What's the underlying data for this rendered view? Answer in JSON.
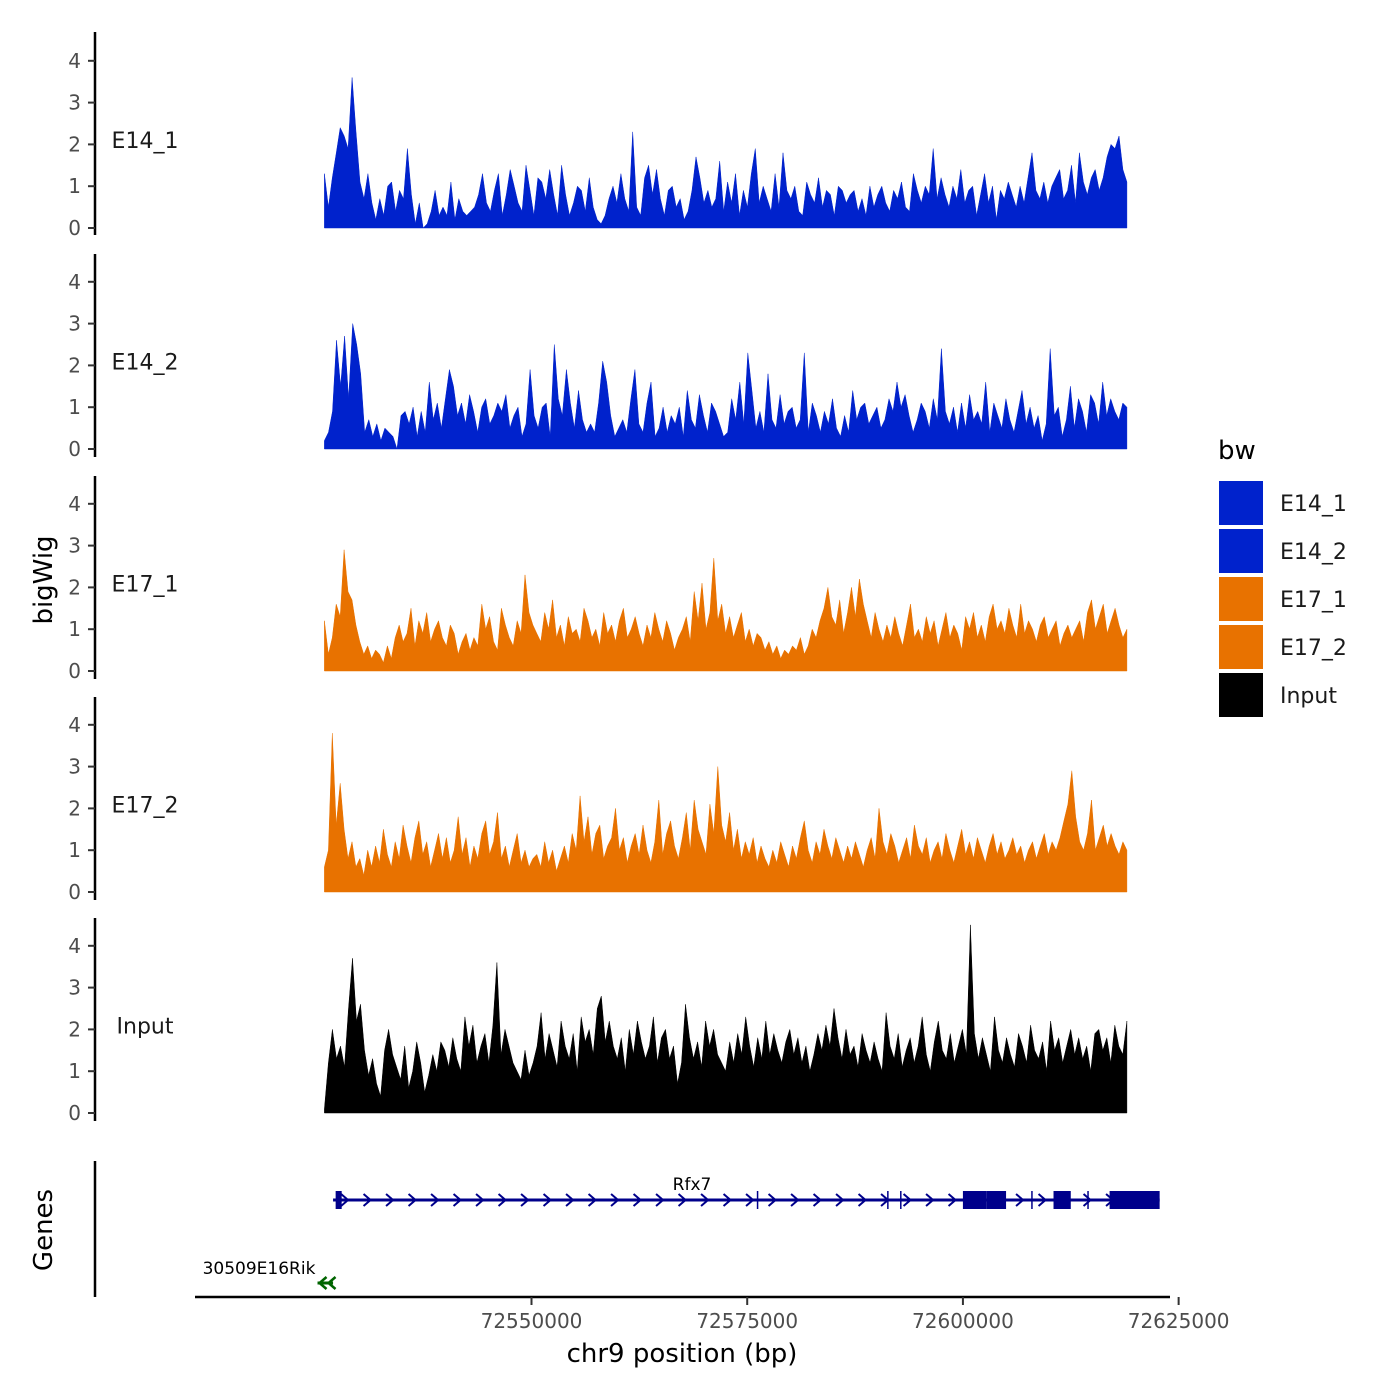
{
  "chart_data": {
    "type": "area",
    "xlabel": "chr9 position (bp)",
    "ylabel": "bigWig",
    "genes_label": "Genes",
    "xlim": [
      72511000,
      72624000
    ],
    "x_ticks": [
      72550000,
      72575000,
      72600000,
      72625000
    ],
    "x_tick_labels": [
      "72550000",
      "72575000",
      "72600000",
      "72625000"
    ],
    "ylim": [
      0,
      4.7
    ],
    "y_ticks": [
      0,
      1,
      2,
      3,
      4
    ],
    "y_tick_labels": [
      "0",
      "1",
      "2",
      "3",
      "4"
    ],
    "grid": false,
    "legend": {
      "title": "bw",
      "position": "right",
      "entries": [
        {
          "name": "E14_1",
          "color": "#0022CC"
        },
        {
          "name": "E14_2",
          "color": "#0022CC"
        },
        {
          "name": "E17_1",
          "color": "#E87200"
        },
        {
          "name": "E17_2",
          "color": "#E87200"
        },
        {
          "name": "Input",
          "color": "#000000"
        }
      ]
    },
    "x_range_data": [
      72526000,
      72619000
    ],
    "tracks": [
      {
        "name": "E14_1",
        "color": "#0022CC",
        "values": [
          1.3,
          0.5,
          1.2,
          1.8,
          2.4,
          2.2,
          1.9,
          3.6,
          2.3,
          1.1,
          0.7,
          1.3,
          0.6,
          0.2,
          0.7,
          0.3,
          1.0,
          1.1,
          0.4,
          0.9,
          0.7,
          1.9,
          0.8,
          0.1,
          0.6,
          0,
          0.1,
          0.4,
          0.9,
          0.3,
          0.5,
          0.3,
          1.1,
          0.2,
          0.7,
          0.4,
          0.3,
          0.4,
          0.5,
          0.8,
          1.3,
          0.6,
          0.4,
          0.9,
          1.3,
          0.3,
          0.8,
          1.4,
          1.0,
          0.6,
          0.4,
          1.5,
          0.9,
          0.3,
          1.2,
          1.1,
          0.7,
          1.4,
          0.8,
          0.3,
          1.5,
          0.8,
          0.3,
          0.6,
          1.0,
          0.9,
          0.4,
          1.2,
          0.5,
          0.2,
          0.1,
          0.3,
          0.7,
          1.0,
          0.6,
          1.3,
          0.7,
          0.4,
          2.3,
          0.5,
          0.3,
          1.2,
          1.5,
          0.8,
          1.4,
          0.7,
          0.3,
          0.9,
          1.0,
          0.5,
          0.7,
          0.2,
          0.4,
          0.9,
          1.7,
          1.2,
          0.6,
          0.9,
          0.5,
          0.7,
          1.6,
          0.4,
          1.1,
          0.6,
          1.3,
          0.3,
          0.9,
          0.5,
          1.3,
          1.9,
          0.6,
          1.0,
          0.7,
          0.4,
          1.3,
          0.5,
          1.8,
          0.9,
          0.7,
          1.0,
          0.4,
          0.3,
          1.1,
          0.8,
          0.6,
          1.2,
          0.5,
          0.9,
          0.8,
          0.3,
          1.0,
          0.9,
          0.6,
          0.8,
          0.9,
          0.4,
          0.7,
          0.3,
          1.0,
          0.5,
          0.8,
          1.0,
          0.6,
          0.4,
          0.9,
          0.7,
          1.1,
          0.5,
          0.4,
          1.3,
          0.9,
          0.6,
          1.0,
          0.8,
          1.9,
          0.7,
          1.2,
          0.8,
          0.5,
          1.0,
          0.7,
          1.4,
          0.6,
          0.9,
          1.0,
          0.3,
          0.8,
          1.3,
          0.6,
          1.0,
          0.2,
          0.9,
          0.7,
          1.1,
          0.8,
          0.5,
          1.0,
          0.6,
          1.2,
          1.8,
          0.9,
          0.7,
          1.1,
          0.6,
          1.0,
          1.2,
          1.4,
          0.7,
          0.9,
          1.5,
          0.6,
          1.8,
          1.1,
          0.8,
          1.2,
          1.4,
          0.9,
          1.2,
          1.7,
          2.0,
          1.9,
          2.2,
          1.4,
          1.1
        ]
      },
      {
        "name": "E14_2",
        "color": "#0022CC",
        "values": [
          0.2,
          0.4,
          0.9,
          2.6,
          1.5,
          2.7,
          1.2,
          3.0,
          2.5,
          1.8,
          0.4,
          0.7,
          0.3,
          0.6,
          0.2,
          0.5,
          0.4,
          0.3,
          0,
          0.8,
          0.9,
          0.6,
          1.0,
          0.3,
          0.9,
          0.4,
          1.6,
          0.7,
          1.1,
          0.5,
          1.2,
          1.9,
          1.5,
          0.8,
          1.1,
          0.6,
          1.3,
          0.9,
          0.4,
          1.0,
          1.2,
          0.6,
          0.8,
          1.1,
          0.9,
          1.3,
          0.5,
          0.8,
          1.0,
          0.3,
          0.6,
          1.9,
          0.8,
          0.5,
          1.0,
          1.1,
          0.3,
          2.5,
          1.2,
          0.8,
          1.9,
          1.1,
          0.5,
          1.4,
          0.7,
          0.4,
          0.6,
          0.4,
          1.1,
          2.1,
          1.6,
          0.8,
          0.3,
          0.5,
          0.7,
          0.4,
          1.2,
          1.9,
          0.6,
          0.4,
          1.1,
          1.6,
          0.3,
          0.5,
          1.0,
          0.4,
          0.8,
          0.6,
          1.0,
          0.3,
          1.4,
          0.7,
          0.5,
          1.3,
          0.8,
          0.4,
          1.1,
          0.9,
          0.6,
          0.3,
          0.4,
          1.2,
          0.7,
          1.6,
          0.6,
          2.3,
          1.4,
          0.5,
          0.9,
          0.4,
          1.8,
          0.7,
          0.5,
          1.3,
          0.6,
          0.9,
          1.0,
          0.5,
          0.7,
          2.3,
          0.4,
          1.1,
          0.8,
          0.4,
          0.9,
          0.6,
          1.2,
          0.5,
          0.3,
          0.8,
          0.4,
          1.4,
          0.7,
          1.0,
          1.1,
          0.6,
          0.8,
          1.0,
          0.5,
          0.7,
          1.2,
          0.9,
          1.6,
          1.0,
          1.3,
          0.8,
          0.4,
          0.7,
          1.1,
          0.9,
          0.5,
          1.2,
          0.7,
          2.4,
          0.9,
          0.6,
          1.0,
          0.4,
          1.1,
          0.5,
          1.3,
          0.7,
          0.9,
          0.6,
          1.6,
          0.4,
          1.1,
          0.8,
          0.5,
          1.2,
          0.7,
          0.4,
          0.9,
          1.4,
          0.6,
          1.0,
          0.5,
          0.8,
          0.2,
          0.6,
          2.4,
          0.8,
          1.0,
          0.3,
          0.7,
          1.5,
          0.5,
          1.2,
          0.9,
          0.4,
          1.3,
          1.1,
          0.6,
          1.6,
          0.8,
          1.2,
          0.9,
          0.7,
          1.1,
          1.0
        ]
      },
      {
        "name": "E17_1",
        "color": "#E87200",
        "values": [
          1.2,
          0.4,
          0.8,
          1.6,
          1.3,
          2.9,
          1.9,
          1.7,
          1.1,
          0.7,
          0.4,
          0.6,
          0.3,
          0.5,
          0.4,
          0.2,
          0.6,
          0.3,
          0.8,
          1.1,
          0.7,
          0.9,
          1.5,
          0.6,
          1.2,
          0.9,
          1.4,
          0.7,
          1.0,
          1.2,
          0.8,
          0.6,
          1.1,
          0.9,
          0.4,
          0.7,
          0.9,
          0.5,
          0.8,
          0.6,
          1.6,
          1.0,
          1.3,
          0.7,
          0.5,
          1.5,
          1.1,
          0.8,
          0.6,
          1.2,
          0.9,
          2.3,
          1.4,
          1.1,
          0.9,
          0.7,
          1.4,
          1.0,
          1.7,
          0.8,
          1.1,
          0.6,
          1.3,
          0.9,
          1.0,
          0.7,
          1.5,
          1.2,
          0.8,
          1.0,
          0.6,
          1.4,
          0.9,
          1.1,
          0.7,
          1.2,
          1.5,
          0.8,
          1.0,
          1.3,
          0.9,
          0.6,
          1.1,
          0.8,
          1.4,
          1.0,
          0.7,
          1.2,
          0.9,
          0.5,
          0.8,
          1.0,
          1.3,
          0.7,
          1.9,
          1.2,
          2.1,
          1.0,
          1.4,
          2.7,
          1.2,
          1.6,
          0.9,
          1.3,
          0.8,
          1.1,
          1.4,
          0.7,
          1.0,
          0.6,
          0.9,
          0.8,
          0.5,
          0.7,
          0.4,
          0.6,
          0.3,
          0.5,
          0.4,
          0.6,
          0.5,
          0.8,
          0.4,
          0.6,
          1.0,
          0.8,
          1.2,
          1.5,
          2.0,
          1.3,
          1.1,
          1.7,
          0.9,
          1.4,
          2.0,
          1.3,
          2.2,
          1.6,
          1.2,
          0.8,
          1.4,
          1.0,
          0.7,
          1.1,
          0.8,
          1.3,
          0.9,
          0.6,
          1.1,
          1.6,
          0.8,
          1.0,
          0.7,
          1.3,
          0.9,
          1.2,
          0.6,
          1.0,
          1.4,
          0.8,
          1.1,
          0.9,
          0.5,
          1.3,
          1.0,
          1.4,
          0.8,
          1.1,
          0.7,
          1.3,
          1.6,
          1.0,
          1.2,
          0.9,
          1.5,
          1.1,
          0.8,
          1.6,
          0.9,
          1.2,
          1.0,
          0.7,
          1.1,
          1.3,
          0.8,
          1.0,
          1.2,
          0.6,
          0.9,
          1.1,
          0.8,
          1.0,
          1.2,
          0.7,
          1.4,
          1.7,
          1.0,
          1.3,
          1.6,
          0.9,
          1.2,
          1.5,
          1.1,
          0.8,
          1.0
        ]
      },
      {
        "name": "E17_2",
        "color": "#E87200",
        "values": [
          0.6,
          1.0,
          3.8,
          1.6,
          2.6,
          1.5,
          0.8,
          1.2,
          0.6,
          0.8,
          0.4,
          1.0,
          0.6,
          1.1,
          0.7,
          1.5,
          0.9,
          0.6,
          1.2,
          0.8,
          1.6,
          1.1,
          0.7,
          1.3,
          1.7,
          0.9,
          1.2,
          0.6,
          1.0,
          1.4,
          0.8,
          1.3,
          0.7,
          1.0,
          1.8,
          0.9,
          1.3,
          0.6,
          1.1,
          0.8,
          1.4,
          1.7,
          0.9,
          1.2,
          1.9,
          0.8,
          1.1,
          0.6,
          1.0,
          1.4,
          0.7,
          1.0,
          0.6,
          0.8,
          0.9,
          0.6,
          1.2,
          0.7,
          1.0,
          0.5,
          0.8,
          1.1,
          0.7,
          1.4,
          1.0,
          2.3,
          1.2,
          1.8,
          0.9,
          1.4,
          1.6,
          0.8,
          1.1,
          1.3,
          2.0,
          1.0,
          1.3,
          0.7,
          1.1,
          1.4,
          0.9,
          1.6,
          1.0,
          0.7,
          1.2,
          2.2,
          0.9,
          1.4,
          1.7,
          1.1,
          0.8,
          1.3,
          1.9,
          1.0,
          2.2,
          1.5,
          1.2,
          0.9,
          2.1,
          1.4,
          3.0,
          1.6,
          1.2,
          1.9,
          1.0,
          1.5,
          0.8,
          1.2,
          0.9,
          1.3,
          0.7,
          1.1,
          0.8,
          0.6,
          1.0,
          0.7,
          1.2,
          0.9,
          0.6,
          1.1,
          0.8,
          1.3,
          1.7,
          1.0,
          0.7,
          1.2,
          0.9,
          1.5,
          1.1,
          0.8,
          1.3,
          1.0,
          0.7,
          1.1,
          0.8,
          1.2,
          0.9,
          0.6,
          1.0,
          1.3,
          0.8,
          2.0,
          1.2,
          0.9,
          1.4,
          1.1,
          0.7,
          1.0,
          1.3,
          0.8,
          1.6,
          1.1,
          0.9,
          1.3,
          0.7,
          1.0,
          1.2,
          0.8,
          1.4,
          1.0,
          0.7,
          1.1,
          1.5,
          0.9,
          1.2,
          0.8,
          1.3,
          1.0,
          0.7,
          1.1,
          1.4,
          0.9,
          1.2,
          0.8,
          1.0,
          1.3,
          0.9,
          1.1,
          0.7,
          1.0,
          1.2,
          0.8,
          1.1,
          1.4,
          0.9,
          1.2,
          1.0,
          1.3,
          1.7,
          2.1,
          2.9,
          1.8,
          1.2,
          1.0,
          1.4,
          2.2,
          1.0,
          1.3,
          1.6,
          1.1,
          1.4,
          1.1,
          0.9,
          1.2,
          1.0
        ]
      },
      {
        "name": "Input",
        "color": "#000000",
        "values": [
          0.1,
          1.2,
          2.0,
          1.3,
          1.6,
          1.1,
          2.5,
          3.7,
          2.2,
          2.6,
          1.5,
          0.9,
          1.3,
          0.7,
          0.4,
          1.5,
          2.0,
          1.4,
          1.1,
          0.8,
          1.6,
          0.6,
          1.0,
          1.7,
          1.2,
          0.5,
          0.9,
          1.4,
          1.0,
          1.7,
          1.5,
          1.1,
          1.8,
          1.3,
          1.0,
          2.3,
          1.6,
          2.1,
          1.2,
          1.6,
          1.9,
          1.2,
          2.1,
          3.6,
          1.4,
          2.0,
          1.6,
          1.2,
          1.0,
          0.8,
          1.5,
          0.9,
          1.2,
          1.6,
          2.4,
          1.3,
          1.9,
          1.5,
          1.1,
          2.2,
          1.6,
          1.3,
          1.9,
          1.0,
          2.3,
          1.7,
          2.0,
          1.4,
          2.5,
          2.8,
          1.7,
          2.2,
          1.6,
          1.3,
          1.8,
          1.0,
          2.0,
          1.4,
          2.2,
          1.7,
          1.3,
          1.6,
          2.3,
          1.2,
          1.8,
          2.0,
          1.3,
          1.6,
          0.7,
          1.2,
          2.6,
          1.8,
          1.3,
          1.7,
          1.1,
          2.2,
          1.6,
          2.0,
          1.4,
          1.2,
          1.0,
          1.7,
          1.2,
          1.9,
          1.4,
          2.3,
          1.6,
          1.1,
          1.8,
          1.3,
          2.2,
          1.4,
          1.9,
          1.5,
          1.2,
          1.7,
          2.0,
          1.4,
          1.8,
          1.2,
          1.6,
          1.0,
          1.4,
          1.9,
          1.5,
          2.1,
          1.6,
          2.5,
          1.8,
          1.3,
          2.0,
          1.4,
          1.6,
          1.1,
          1.9,
          1.5,
          1.2,
          1.7,
          1.3,
          1.0,
          2.4,
          1.6,
          1.3,
          1.9,
          1.1,
          1.5,
          1.8,
          1.2,
          1.6,
          2.3,
          1.4,
          1.0,
          1.7,
          2.2,
          1.5,
          1.3,
          1.9,
          1.2,
          1.6,
          2.0,
          1.4,
          4.5,
          1.9,
          1.3,
          1.8,
          1.4,
          1.0,
          2.3,
          1.5,
          1.2,
          1.8,
          1.4,
          1.1,
          1.9,
          1.6,
          1.2,
          2.1,
          1.5,
          1.3,
          1.7,
          1.0,
          2.2,
          1.5,
          1.8,
          1.2,
          1.6,
          2.0,
          1.4,
          1.8,
          1.3,
          1.6,
          1.0,
          1.9,
          2.0,
          1.5,
          1.8,
          1.2,
          2.1,
          1.6,
          1.4,
          2.2
        ]
      }
    ],
    "genes": [
      {
        "name": "Rfx7",
        "strand": "+",
        "start": 72527000,
        "end": 72622800,
        "color": "#00008B",
        "exons": [
          [
            72527300,
            72528000
          ],
          [
            72600000,
            72602700
          ],
          [
            72602700,
            72605000
          ],
          [
            72610500,
            72612500
          ],
          [
            72617000,
            72622800
          ]
        ],
        "small_exons": [
          72576200,
          72591300,
          72592800,
          72608000,
          72614500
        ]
      },
      {
        "name": "30509E16Rik",
        "strand": "-",
        "start": 72525200,
        "end": 72527000,
        "color": "#006400"
      }
    ]
  }
}
